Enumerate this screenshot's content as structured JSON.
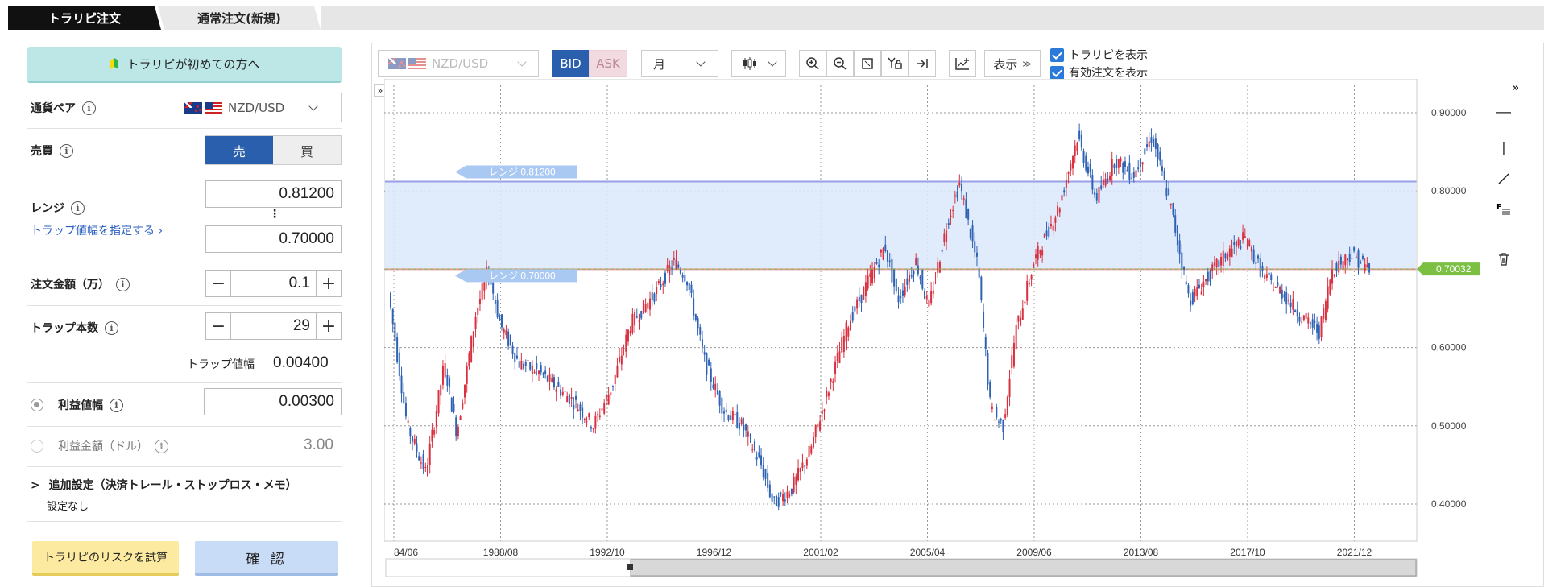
{
  "tabs": {
    "active": "トラリピ注文",
    "inactive": "通常注文(新規)"
  },
  "beginner_button": "トラリピが初めての方へ",
  "pair": {
    "label": "通貨ペア",
    "value": "NZD/USD"
  },
  "side": {
    "label": "売買",
    "sell": "売",
    "buy": "買"
  },
  "range": {
    "label": "レンジ",
    "upper": "0.81200",
    "lower": "0.70000",
    "sep": "⋮",
    "link": "トラップ値幅を指定する ›"
  },
  "amount": {
    "label": "注文金額（万）",
    "value": "0.1",
    "minus": "−",
    "plus": "+"
  },
  "traps": {
    "label": "トラップ本数",
    "value": "29",
    "minus": "−",
    "plus": "+",
    "width_label": "トラップ値幅",
    "width_value": "0.00400"
  },
  "profit_width": {
    "label": "利益値幅",
    "value": "0.00300"
  },
  "profit_amount": {
    "label": "利益金額（ドル）",
    "value": "3.00"
  },
  "additional": {
    "label": "追加設定（決済トレール・ストップロス・メモ）",
    "value": "設定なし",
    "caret": ">"
  },
  "buttons": {
    "risk": "トラリピのリスクを試算",
    "confirm": "確 認"
  },
  "toolbar": {
    "pair": "NZD/USD",
    "bid": "BID",
    "ask": "ASK",
    "period": "月",
    "display": "表示",
    "show_trarip": "トラリピを表示",
    "show_orders": "有効注文を表示",
    "collapse": "»",
    "collapse_left": "»"
  },
  "colors": {
    "up": "#d9303f",
    "down": "#2e62b4",
    "range_fill": "#dde9fb",
    "accent": "#2a5fae",
    "price": "#7bc043"
  },
  "chart_data": {
    "type": "candlestick",
    "title": "",
    "x_ticks": [
      "84/06",
      "1988/08",
      "1992/10",
      "1996/12",
      "2001/02",
      "2005/04",
      "2009/06",
      "2013/08",
      "2017/10",
      "2021/12"
    ],
    "y_ticks": [
      "0.90000",
      "0.80000",
      "0.70000",
      "0.60000",
      "0.50000",
      "0.40000"
    ],
    "ylim": [
      0.365,
      0.935
    ],
    "range_upper": {
      "label": "レンジ 0.81200",
      "value": 0.812
    },
    "range_lower": {
      "label": "レンジ 0.70000",
      "value": 0.7
    },
    "current_price": {
      "label": "0.70032",
      "value": 0.70032
    },
    "grid": true,
    "series": [
      {
        "t": 0,
        "v": 0.67
      },
      {
        "t": 1.5,
        "v": 0.5
      },
      {
        "t": 3,
        "v": 0.44
      },
      {
        "t": 4.5,
        "v": 0.58
      },
      {
        "t": 5.5,
        "v": 0.49
      },
      {
        "t": 7,
        "v": 0.64
      },
      {
        "t": 8,
        "v": 0.7
      },
      {
        "t": 9,
        "v": 0.63
      },
      {
        "t": 10.5,
        "v": 0.58
      },
      {
        "t": 12,
        "v": 0.57
      },
      {
        "t": 13.5,
        "v": 0.55
      },
      {
        "t": 15,
        "v": 0.53
      },
      {
        "t": 16.5,
        "v": 0.5
      },
      {
        "t": 18,
        "v": 0.55
      },
      {
        "t": 19.5,
        "v": 0.63
      },
      {
        "t": 21.5,
        "v": 0.67
      },
      {
        "t": 23,
        "v": 0.71
      },
      {
        "t": 24,
        "v": 0.69
      },
      {
        "t": 25.5,
        "v": 0.58
      },
      {
        "t": 27,
        "v": 0.52
      },
      {
        "t": 28.5,
        "v": 0.5
      },
      {
        "t": 30,
        "v": 0.45
      },
      {
        "t": 31,
        "v": 0.4
      },
      {
        "t": 32.5,
        "v": 0.42
      },
      {
        "t": 34,
        "v": 0.47
      },
      {
        "t": 35.5,
        "v": 0.55
      },
      {
        "t": 37,
        "v": 0.63
      },
      {
        "t": 38.5,
        "v": 0.68
      },
      {
        "t": 40,
        "v": 0.73
      },
      {
        "t": 41,
        "v": 0.66
      },
      {
        "t": 42.5,
        "v": 0.71
      },
      {
        "t": 43.5,
        "v": 0.65
      },
      {
        "t": 45,
        "v": 0.76
      },
      {
        "t": 46,
        "v": 0.81
      },
      {
        "t": 47.5,
        "v": 0.7
      },
      {
        "t": 48.5,
        "v": 0.52
      },
      {
        "t": 49.5,
        "v": 0.5
      },
      {
        "t": 50.5,
        "v": 0.62
      },
      {
        "t": 52,
        "v": 0.71
      },
      {
        "t": 54,
        "v": 0.78
      },
      {
        "t": 55.5,
        "v": 0.87
      },
      {
        "t": 57,
        "v": 0.79
      },
      {
        "t": 58.5,
        "v": 0.84
      },
      {
        "t": 60,
        "v": 0.82
      },
      {
        "t": 61.5,
        "v": 0.87
      },
      {
        "t": 63,
        "v": 0.78
      },
      {
        "t": 64.5,
        "v": 0.66
      },
      {
        "t": 66,
        "v": 0.69
      },
      {
        "t": 67.5,
        "v": 0.72
      },
      {
        "t": 69,
        "v": 0.74
      },
      {
        "t": 70.5,
        "v": 0.69
      },
      {
        "t": 72,
        "v": 0.67
      },
      {
        "t": 73.5,
        "v": 0.64
      },
      {
        "t": 75,
        "v": 0.62
      },
      {
        "t": 76,
        "v": 0.7
      },
      {
        "t": 77.5,
        "v": 0.72
      },
      {
        "t": 79,
        "v": 0.7
      }
    ]
  }
}
